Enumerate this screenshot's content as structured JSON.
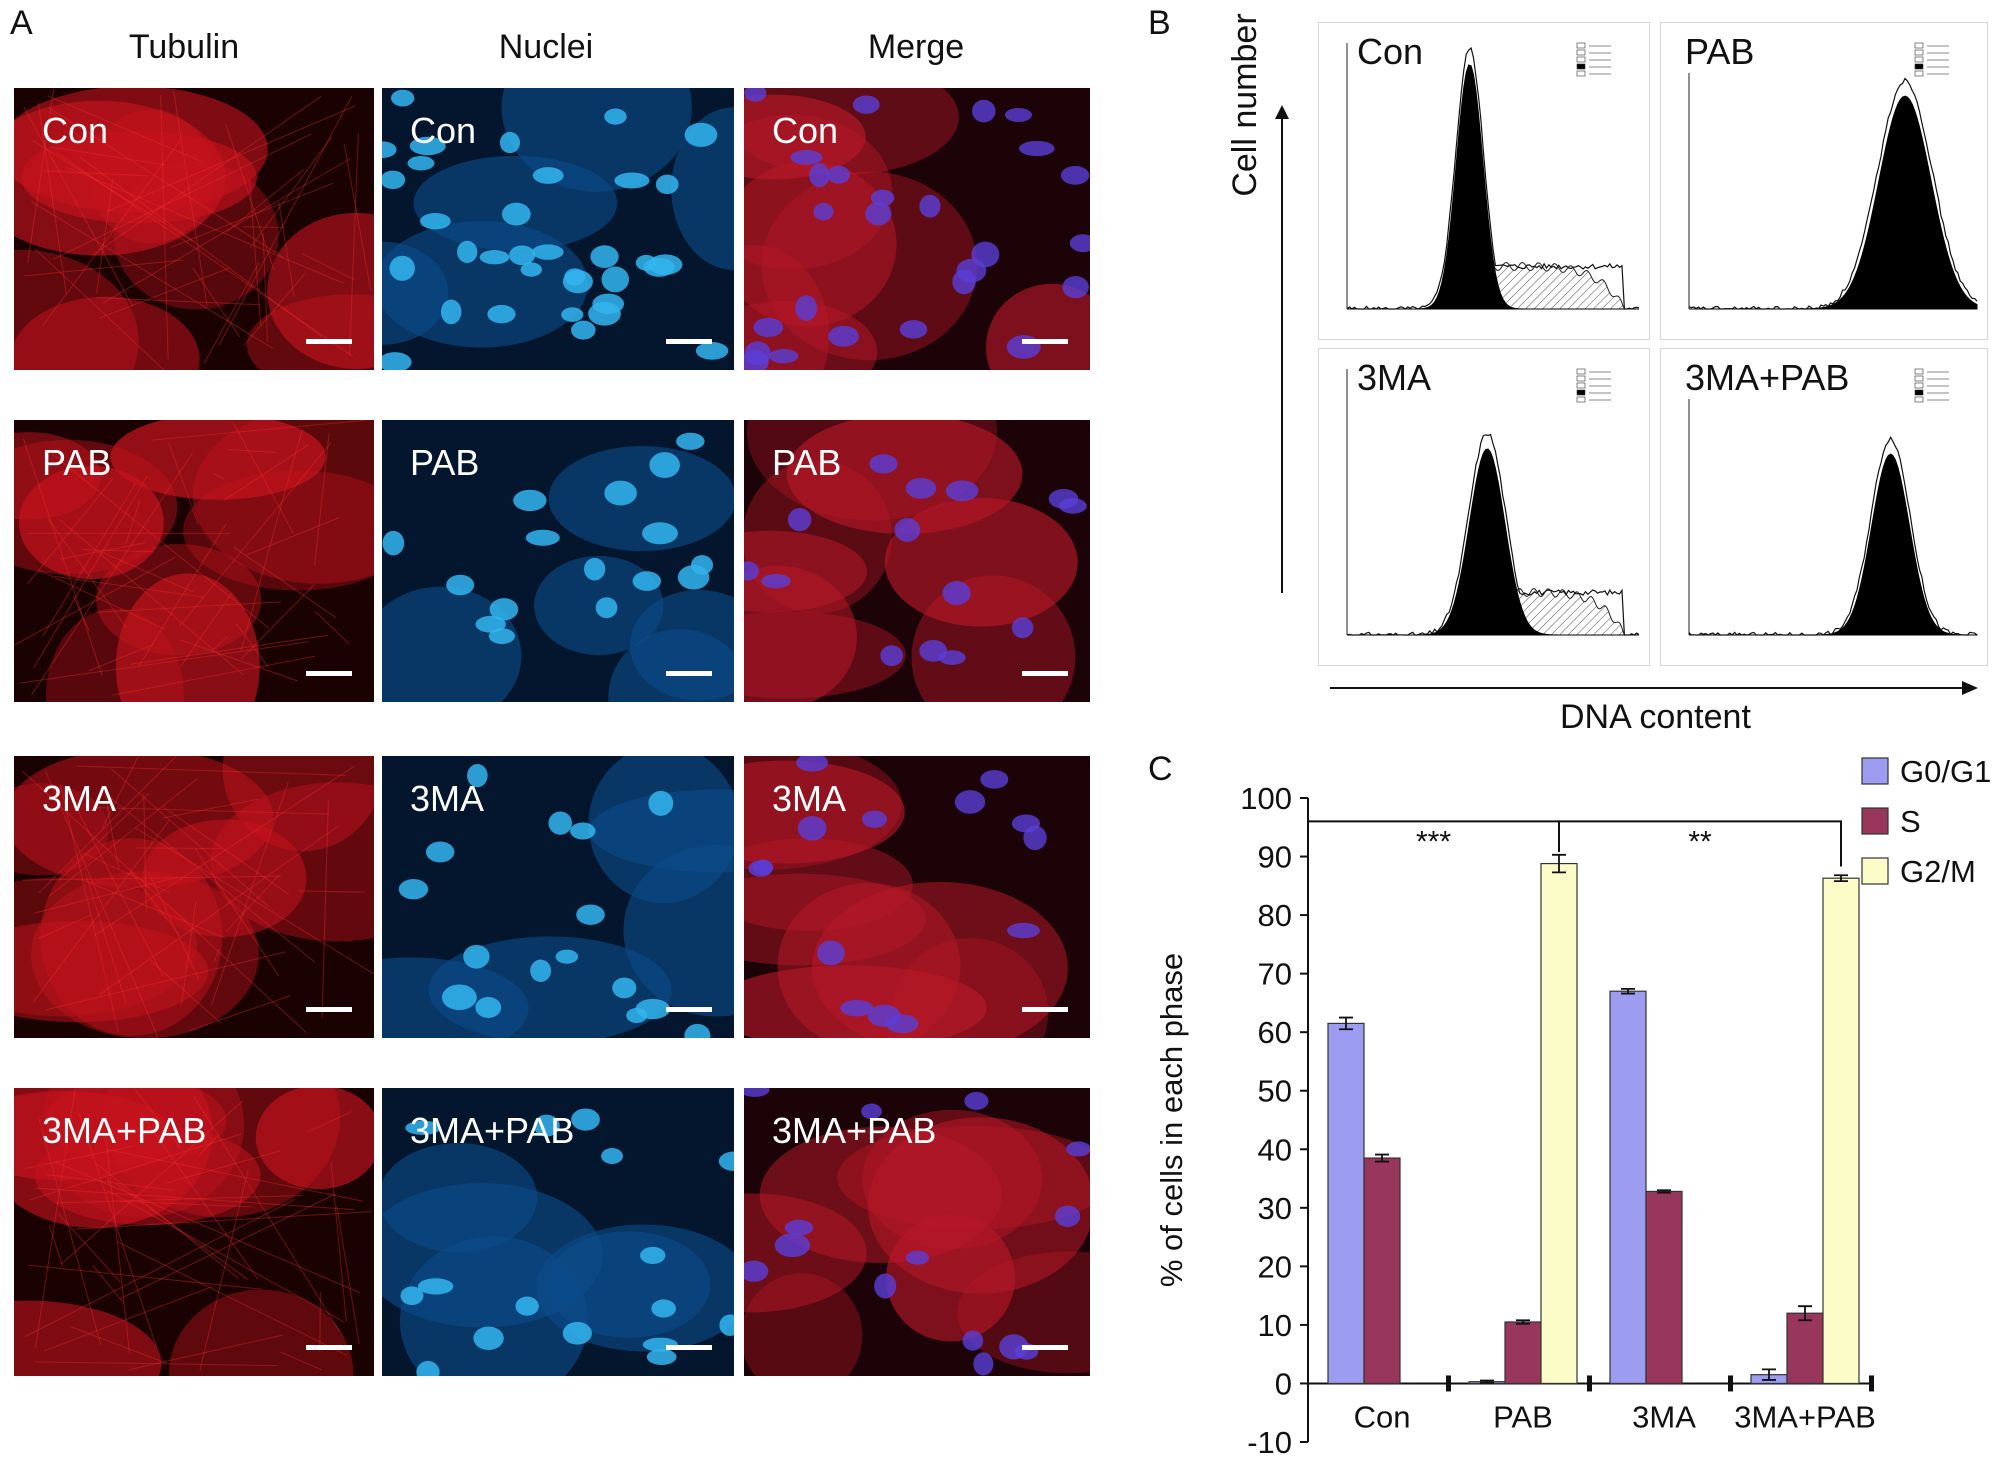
{
  "panel_labels": {
    "a": "A",
    "b": "B",
    "c": "C"
  },
  "panel_a": {
    "columns": [
      "Tubulin",
      "Nuclei",
      "Merge"
    ],
    "rows": [
      "Con",
      "PAB",
      "3MA",
      "3MA+PAB"
    ],
    "colors": {
      "tubulin": "#c8141e",
      "nuclei": "#33b5ee",
      "merge_blue": "#5a3fd8"
    }
  },
  "panel_b": {
    "y_axis_label": "Cell number",
    "x_axis_label": "DNA content",
    "plots": [
      "Con",
      "PAB",
      "3MA",
      "3MA+PAB"
    ]
  },
  "chart_data": {
    "type": "bar",
    "categories": [
      "Con",
      "PAB",
      "3MA",
      "3MA+PAB"
    ],
    "series": [
      {
        "name": "G0/G1",
        "values": [
          61.5,
          0.3,
          67.0,
          1.5
        ],
        "errors": [
          1.0,
          0.2,
          0.4,
          0.9
        ],
        "color": "#9c9cf0"
      },
      {
        "name": "S",
        "values": [
          38.5,
          10.5,
          32.8,
          12.0
        ],
        "errors": [
          0.6,
          0.3,
          0.2,
          1.2
        ],
        "color": "#98365c"
      },
      {
        "name": "G2/M",
        "values": [
          0,
          88.8,
          0,
          86.3
        ],
        "errors": [
          0,
          1.5,
          0,
          0.5
        ],
        "color": "#fcfcc8"
      }
    ],
    "ylabel": "% of cells in each phase",
    "xlabel": "",
    "ylim": [
      -10,
      100
    ],
    "yticks": [
      -10,
      0,
      10,
      20,
      30,
      40,
      50,
      60,
      70,
      80,
      90,
      100
    ],
    "legend_position": "top-right",
    "significance": [
      {
        "from": "Con",
        "to": "PAB",
        "label": "***"
      },
      {
        "from": "PAB",
        "to": "3MA+PAB",
        "label": "**"
      }
    ]
  }
}
